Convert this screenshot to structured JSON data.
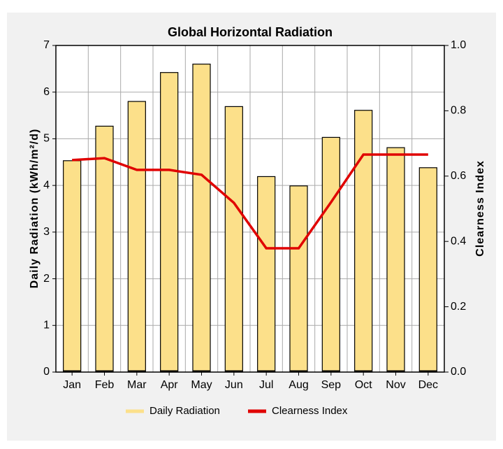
{
  "chart_data": {
    "type": "bar",
    "title": "Global Horizontal Radiation",
    "y_label": "Daily Radiation (kWh/m²/d)",
    "y2_label": "Clearness Index",
    "categories": [
      "Jan",
      "Feb",
      "Mar",
      "Apr",
      "May",
      "Jun",
      "Jul",
      "Aug",
      "Sep",
      "Oct",
      "Nov",
      "Dec"
    ],
    "series": [
      {
        "name": "Daily Radiation",
        "type": "bar",
        "color": "#fce08a",
        "values": [
          4.53,
          5.27,
          5.8,
          6.42,
          6.6,
          5.69,
          4.19,
          3.99,
          5.03,
          5.61,
          4.81,
          4.38
        ]
      },
      {
        "name": "Clearness Index",
        "type": "line",
        "axis": "y2",
        "color": "#e00000",
        "values": [
          0.649,
          0.655,
          0.619,
          0.619,
          0.604,
          0.518,
          0.379,
          0.379,
          0.52,
          0.666,
          0.666,
          0.666
        ]
      }
    ],
    "ylim": [
      0,
      7
    ],
    "yticks": [
      0,
      1,
      2,
      3,
      4,
      5,
      6,
      7
    ],
    "y2lim": [
      0,
      1
    ],
    "y2ticks": [
      {
        "value": 0,
        "label": "0.0"
      },
      0.2,
      0.4,
      0.6,
      0.8,
      {
        "value": 1,
        "label": "1.0"
      }
    ],
    "grid": true,
    "legend": "bottom"
  }
}
